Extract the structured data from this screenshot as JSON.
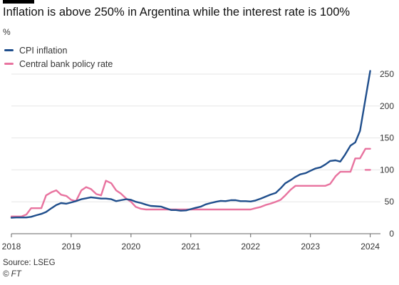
{
  "title": "Inflation is above 250% in Argentina while the interest rate is 100%",
  "unit_label": "%",
  "source": "Source: LSEG",
  "credit": "© FT",
  "colors": {
    "cpi": "#1f4e8c",
    "policy": "#e8739f",
    "grid": "#e6e6e6",
    "axis": "#666666"
  },
  "chart_data": {
    "type": "line",
    "ylim": [
      0,
      250
    ],
    "yticks": [
      0,
      50,
      100,
      150,
      200,
      250
    ],
    "xlim": [
      2018,
      2024.1
    ],
    "xticks": [
      {
        "value": 2018,
        "label": "2018"
      },
      {
        "value": 2019,
        "label": "2019"
      },
      {
        "value": 2020,
        "label": "2020"
      },
      {
        "value": 2021,
        "label": "2021"
      },
      {
        "value": 2022,
        "label": "2022"
      },
      {
        "value": 2023,
        "label": "2023"
      },
      {
        "value": 2024,
        "label": "2024"
      }
    ],
    "grid": true,
    "legend_position": "top-left",
    "series": [
      {
        "name": "CPI inflation",
        "key": "cpi",
        "x": [
          2018.0,
          2018.08,
          2018.17,
          2018.25,
          2018.33,
          2018.42,
          2018.5,
          2018.58,
          2018.67,
          2018.75,
          2018.83,
          2018.92,
          2019.0,
          2019.08,
          2019.17,
          2019.25,
          2019.33,
          2019.42,
          2019.5,
          2019.58,
          2019.67,
          2019.75,
          2019.83,
          2019.92,
          2020.0,
          2020.08,
          2020.17,
          2020.25,
          2020.33,
          2020.42,
          2020.5,
          2020.58,
          2020.67,
          2020.75,
          2020.83,
          2020.92,
          2021.0,
          2021.08,
          2021.17,
          2021.25,
          2021.33,
          2021.42,
          2021.5,
          2021.58,
          2021.67,
          2021.75,
          2021.83,
          2021.92,
          2022.0,
          2022.08,
          2022.17,
          2022.25,
          2022.33,
          2022.42,
          2022.5,
          2022.58,
          2022.67,
          2022.75,
          2022.83,
          2022.92,
          2023.0,
          2023.08,
          2023.17,
          2023.25,
          2023.33,
          2023.42,
          2023.5,
          2023.58,
          2023.67,
          2023.75,
          2023.83,
          2023.92,
          2024.0
        ],
        "values": [
          25,
          25.5,
          25.5,
          25.5,
          26.5,
          29,
          31,
          34,
          40,
          45,
          48,
          47,
          49,
          51,
          54,
          55.5,
          57,
          56,
          55,
          55,
          54,
          51,
          52.5,
          54,
          53,
          50,
          48,
          45.5,
          43.5,
          43,
          42.5,
          40,
          37,
          37,
          36,
          36.5,
          38.5,
          40.5,
          42.5,
          46,
          48,
          50,
          51.5,
          51,
          52.5,
          52.5,
          51,
          51,
          50.5,
          52,
          55,
          58,
          61,
          64,
          71,
          79,
          84,
          89,
          93,
          95,
          98.5,
          102,
          104,
          108.5,
          114,
          115,
          113,
          124,
          138,
          143,
          161,
          211,
          255
        ]
      },
      {
        "name": "Central bank policy rate",
        "key": "policy",
        "x": [
          2018.0,
          2018.08,
          2018.17,
          2018.25,
          2018.33,
          2018.42,
          2018.5,
          2018.58,
          2018.67,
          2018.75,
          2018.83,
          2018.92,
          2019.0,
          2019.08,
          2019.17,
          2019.25,
          2019.33,
          2019.42,
          2019.5,
          2019.58,
          2019.67,
          2019.75,
          2019.83,
          2019.92,
          2020.0,
          2020.08,
          2020.17,
          2020.25,
          2020.33,
          2020.42,
          2020.5,
          2020.58,
          2020.67,
          2020.75,
          2020.83,
          2020.92,
          2021.0,
          2021.08,
          2021.17,
          2021.25,
          2021.33,
          2021.42,
          2021.5,
          2021.58,
          2021.67,
          2021.75,
          2021.83,
          2021.92,
          2022.0,
          2022.08,
          2022.17,
          2022.25,
          2022.33,
          2022.42,
          2022.5,
          2022.58,
          2022.67,
          2022.75,
          2022.83,
          2022.92,
          2023.0,
          2023.08,
          2023.17,
          2023.25,
          2023.33,
          2023.42,
          2023.5,
          2023.58,
          2023.67,
          2023.75,
          2023.83,
          2023.92,
          2024.0
        ],
        "values": [
          27,
          27,
          27,
          30,
          40,
          40,
          40,
          60,
          65,
          68,
          61,
          59,
          53,
          51,
          68,
          73,
          70,
          62,
          60,
          83,
          79,
          68,
          63,
          55,
          50,
          42,
          39,
          38,
          38,
          38,
          38,
          38,
          38,
          38,
          38,
          38,
          38,
          38,
          38,
          38,
          38,
          38,
          38,
          38,
          38,
          38,
          38,
          38,
          38,
          40,
          42,
          45,
          47,
          50,
          53,
          60,
          69,
          75,
          75,
          75,
          75,
          75,
          75,
          75,
          78,
          90,
          97,
          97,
          97,
          118,
          118,
          133,
          133
        ]
      },
      {
        "name": "",
        "key": "policy-end",
        "x": [
          2023.92,
          2024.0
        ],
        "values": [
          100,
          100
        ]
      }
    ]
  }
}
